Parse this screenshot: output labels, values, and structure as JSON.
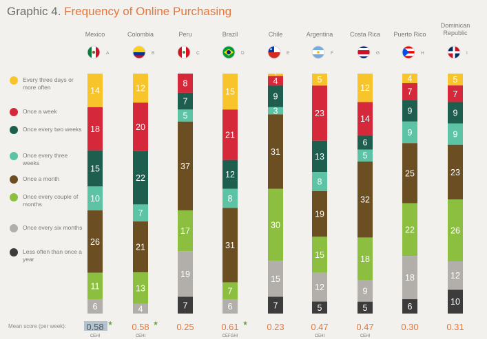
{
  "title": {
    "prefix": "Graphic 4.",
    "main": "Frequency of Online Purchasing"
  },
  "mean_label": "Mean score (per week):",
  "chart_data": {
    "type": "bar",
    "stacked": true,
    "title": "Frequency of Online Purchasing",
    "categories": [
      "Mexico",
      "Colombia",
      "Peru",
      "Brazil",
      "Chile",
      "Argentina",
      "Costa Rica",
      "Puerto Rico",
      "Dominican Republic"
    ],
    "category_letters": [
      "A",
      "B",
      "C",
      "D",
      "E",
      "F",
      "G",
      "H",
      "I"
    ],
    "category_icons": [
      "mexico-flag-icon",
      "colombia-flag-icon",
      "peru-flag-icon",
      "brazil-flag-icon",
      "chile-flag-icon",
      "argentina-flag-icon",
      "costa-rica-flag-icon",
      "puerto-rico-flag-icon",
      "dominican-republic-flag-icon"
    ],
    "series": [
      {
        "name": "Every three days or more often",
        "color": "#f7c52b",
        "values": [
          14,
          12,
          null,
          15,
          1,
          5,
          12,
          4,
          5
        ]
      },
      {
        "name": "Once a week",
        "color": "#d5283a",
        "values": [
          18,
          20,
          8,
          21,
          4,
          23,
          14,
          7,
          7
        ]
      },
      {
        "name": "Once every two weeks",
        "color": "#1d5e4f",
        "values": [
          15,
          22,
          7,
          12,
          9,
          13,
          6,
          9,
          9
        ]
      },
      {
        "name": "Once every three weeks",
        "color": "#5cc3a5",
        "values": [
          10,
          7,
          5,
          8,
          3,
          8,
          5,
          9,
          9
        ]
      },
      {
        "name": "Once a month",
        "color": "#6b4e22",
        "values": [
          26,
          21,
          37,
          31,
          31,
          19,
          32,
          25,
          23
        ]
      },
      {
        "name": "Once every couple of months",
        "color": "#8cbf3f",
        "values": [
          11,
          13,
          17,
          7,
          30,
          15,
          18,
          22,
          26
        ]
      },
      {
        "name": "Once every six months",
        "color": "#b2aeaa",
        "values": [
          6,
          4,
          19,
          6,
          15,
          12,
          9,
          18,
          12
        ]
      },
      {
        "name": "Less often than once a year",
        "color": "#3c3c3c",
        "values": [
          null,
          null,
          7,
          null,
          7,
          5,
          5,
          6,
          10
        ]
      }
    ],
    "mean_scores": [
      "0.58",
      "0.58",
      "0.25",
      "0.61",
      "0.23",
      "0.47",
      "0.47",
      "0.30",
      "0.31"
    ],
    "mean_star": [
      true,
      true,
      false,
      true,
      false,
      false,
      false,
      false,
      false
    ],
    "significance": [
      "CEHI",
      "CEHI",
      "",
      "CEFGHI",
      "",
      "CEHI",
      "CEHI",
      "",
      ""
    ],
    "legend_position": "left",
    "grid": false
  }
}
